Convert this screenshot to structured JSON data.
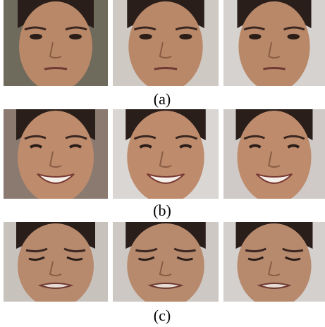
{
  "rows": [
    {
      "label": "(a)"
    },
    {
      "label": "(b)"
    },
    {
      "label": "(c)"
    }
  ]
}
